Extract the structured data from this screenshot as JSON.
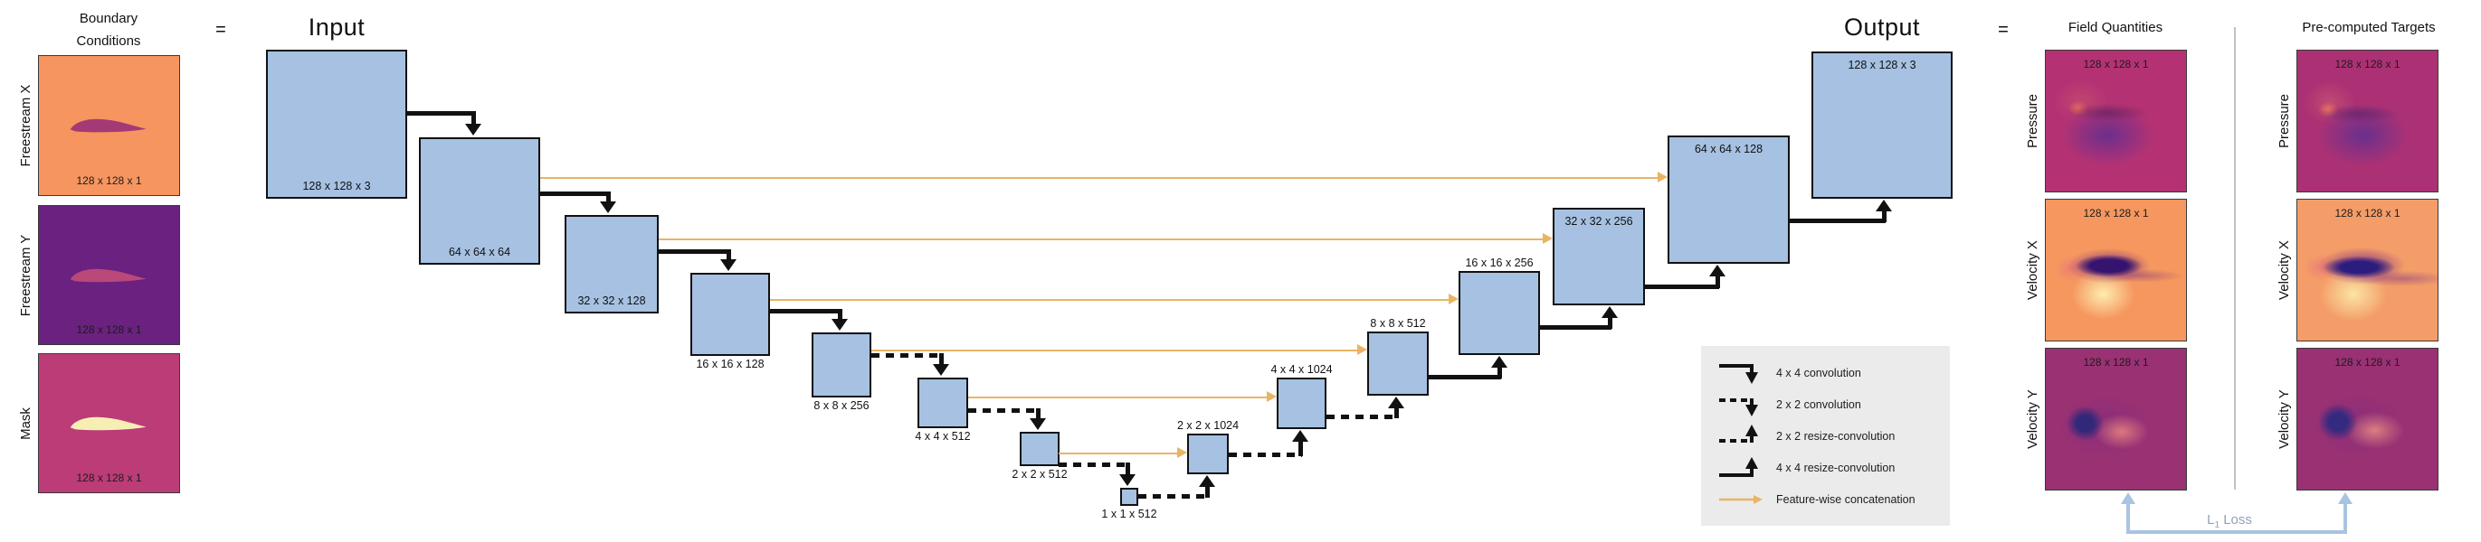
{
  "palette": {
    "block_fill": "#A6C1E2",
    "block_border": "#111111",
    "stack_border": "#8C8C8C",
    "concat_orange": "#E9B465",
    "legend_bg": "#EBEBEB",
    "loss_arrow_blue": "#A9C4E2",
    "loss_text_color": "#8FA2BC",
    "freestream_x_bg": "#F6955F",
    "freestream_y_bg": "#6B2180",
    "mask_bg": "#BB3C77",
    "pressure_bg": "#B43274",
    "velocity_x_bg": "#F5975F",
    "velocity_y_bg": "#9A3173"
  },
  "boundary": {
    "title_line1": "Boundary",
    "title_line2": "Conditions",
    "equals": "=",
    "rows": [
      {
        "label": "Freestream X",
        "size": "128 x 128 x 1"
      },
      {
        "label": "Freestream Y",
        "size": "128 x 128 x 1"
      },
      {
        "label": "Mask",
        "size": "128 x 128 x 1"
      }
    ]
  },
  "unet": {
    "input_title": "Input",
    "output_title": "Output",
    "blocks": [
      "128 x 128 x 3",
      "64 x 64 x 64",
      "32 x 32 x 128",
      "16 x 16 x 128",
      "8 x 8 x 256",
      "4 x 4 x 512",
      "2 x 2 x 512",
      "1 x 1 x 512",
      "2 x 2 x 1024",
      "4 x 4 x 1024",
      "8 x 8 x 512",
      "16 x 16 x 256",
      "32 x 32 x 256",
      "64 x 64 x 128",
      "128 x 128 x 3"
    ]
  },
  "legend": {
    "items": [
      {
        "icon": "solid-down-arrow",
        "label": "4 x 4 convolution"
      },
      {
        "icon": "dashed-down-arrow",
        "label": "2 x 2 convolution"
      },
      {
        "icon": "dashed-up-arrow",
        "label": "2 x 2 resize-convolution"
      },
      {
        "icon": "solid-up-arrow",
        "label": "4 x 4 resize-convolution"
      },
      {
        "icon": "concat-arrow",
        "label": "Feature-wise concatenation"
      }
    ]
  },
  "results": {
    "equals": "=",
    "field_title": "Field Quantities",
    "targets_title": "Pre-computed Targets",
    "rows": [
      {
        "label": "Pressure",
        "size": "128 x 128 x 1"
      },
      {
        "label": "Velocity X",
        "size": "128 x 128 x 1"
      },
      {
        "label": "Velocity Y",
        "size": "128 x 128 x 1"
      }
    ],
    "loss": {
      "main": "L",
      "sub": "1",
      "word": "Loss"
    }
  }
}
